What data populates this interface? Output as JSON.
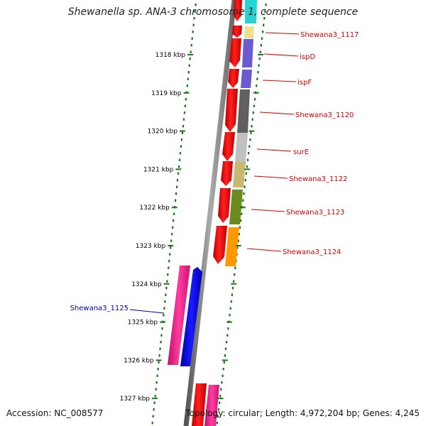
{
  "title": "Shewanella sp. ANA-3 chromosome 1, complete sequence",
  "footer": {
    "accession": "Accession: NC_008577",
    "topology": "Topology: circular; Length: 4,972,204 bp; Genes: 4,245"
  },
  "ticks": [
    {
      "label": "1318 kbp",
      "kbp": 1318
    },
    {
      "label": "1319 kbp",
      "kbp": 1319
    },
    {
      "label": "1320 kbp",
      "kbp": 1320
    },
    {
      "label": "1321 kbp",
      "kbp": 1321
    },
    {
      "label": "1322 kbp",
      "kbp": 1322
    },
    {
      "label": "1323 kbp",
      "kbp": 1323
    },
    {
      "label": "1324 kbp",
      "kbp": 1324
    },
    {
      "label": "1325 kbp",
      "kbp": 1325
    },
    {
      "label": "1326 kbp",
      "kbp": 1326
    },
    {
      "label": "1327 kbp",
      "kbp": 1327
    }
  ],
  "gene_labels": [
    {
      "label": "Shewana3_1117",
      "color": "#dd0000"
    },
    {
      "label": "ispD",
      "color": "#dd0000"
    },
    {
      "label": "ispF",
      "color": "#dd0000"
    },
    {
      "label": "Shewana3_1120",
      "color": "#dd0000"
    },
    {
      "label": "surE",
      "color": "#dd0000"
    },
    {
      "label": "Shewana3_1122",
      "color": "#dd0000"
    },
    {
      "label": "Shewana3_1123",
      "color": "#dd0000"
    },
    {
      "label": "Shewana3_1124",
      "color": "#dd0000"
    },
    {
      "label": "Shewana3_1125",
      "color": "#0000bb"
    }
  ],
  "colors": {
    "backbone": "#808080",
    "tick_dots": "#1a7a1a",
    "cds_forward": "#ee0000",
    "ispD": "#6b5bd0",
    "ispF": "#6b5bd0",
    "Shewana3_1117": "#f0e090",
    "Shewana3_1120": "#606060",
    "surE": "#c0c0c0",
    "Shewana3_1122": "#c8b870",
    "Shewana3_1123": "#6b8a22",
    "Shewana3_1124": "#ff9900",
    "Shewana3_1125_magenta": "#ff1493",
    "Shewana3_1125_blue": "#0000ee",
    "top_cyan": "#00cccc"
  }
}
